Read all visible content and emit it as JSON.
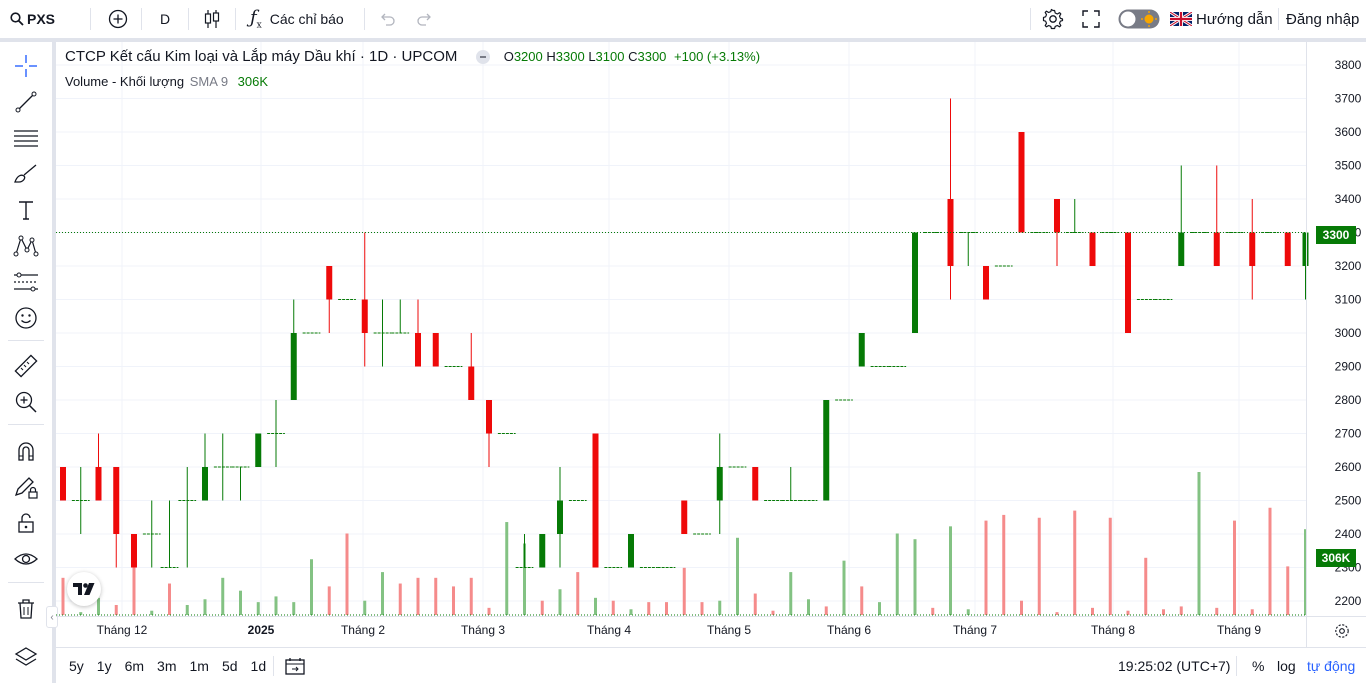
{
  "topbar": {
    "symbol": "PXS",
    "interval": "D",
    "indicators_label": "Các chỉ báo",
    "guide_label": "Hướng dẫn",
    "login_label": "Đăng nhập"
  },
  "legend": {
    "title": "CTCP Kết cấu Kim loại và Lắp máy Dầu khí · 1D · UPCOM",
    "o_label": "O",
    "o_value": "3200",
    "h_label": "H",
    "h_value": "3300",
    "l_label": "L",
    "l_value": "3100",
    "c_label": "C",
    "c_value": "3300",
    "change": "+100 (+3.13%)",
    "volume_label": "Volume - Khối lượng",
    "sma_label": "SMA 9",
    "volume_value": "306K"
  },
  "price_axis": {
    "ticks": [
      "3800",
      "3700",
      "3600",
      "3500",
      "3400",
      "3300",
      "3200",
      "3100",
      "3000",
      "2900",
      "2800",
      "2700",
      "2600",
      "2500",
      "2400",
      "2300",
      "2200"
    ],
    "last_price_tag": "3300",
    "volume_tag": "306K"
  },
  "time_axis": {
    "labels": [
      "Tháng 12",
      "2025",
      "Tháng 2",
      "Tháng 3",
      "Tháng 4",
      "Tháng 5",
      "Tháng 6",
      "Tháng 7",
      "Tháng 8",
      "Tháng 9"
    ]
  },
  "bottombar": {
    "ranges": [
      "5y",
      "1y",
      "6m",
      "3m",
      "1m",
      "5d",
      "1d"
    ],
    "clock": "19:25:02 (UTC+7)",
    "percent_label": "%",
    "log_label": "log",
    "auto_label": "tự động"
  },
  "colors": {
    "up": "#067a06",
    "down": "#ee0a0a",
    "vol_up": "#83c283",
    "vol_down": "#f58b8b",
    "accent": "#2962ff"
  },
  "chart_data": {
    "type": "candlestick",
    "title": "CTCP Kết cấu Kim loại và Lắp máy Dầu khí · 1D · UPCOM",
    "ylim": [
      2150,
      3850
    ],
    "ohlc": [
      [
        2600,
        2600,
        2500,
        2500
      ],
      [
        2500,
        2600,
        2400,
        2500
      ],
      [
        2600,
        2700,
        2500,
        2500
      ],
      [
        2600,
        2600,
        2300,
        2400
      ],
      [
        2400,
        2400,
        2300,
        2300
      ],
      [
        2400,
        2500,
        2300,
        2400
      ],
      [
        2300,
        2500,
        2300,
        2300
      ],
      [
        2500,
        2600,
        2300,
        2500
      ],
      [
        2500,
        2700,
        2500,
        2600
      ],
      [
        2600,
        2700,
        2500,
        2600
      ],
      [
        2600,
        2600,
        2500,
        2600
      ],
      [
        2600,
        2700,
        2600,
        2700
      ],
      [
        2700,
        2800,
        2600,
        2700
      ],
      [
        2800,
        3100,
        2800,
        3000
      ],
      [
        3000,
        3000,
        3000,
        3000
      ],
      [
        3200,
        3200,
        3000,
        3100
      ],
      [
        3100,
        3100,
        3100,
        3100
      ],
      [
        3100,
        3300,
        2900,
        3000
      ],
      [
        3000,
        3100,
        2900,
        3000
      ],
      [
        3000,
        3100,
        3000,
        3000
      ],
      [
        3000,
        3100,
        2900,
        2900
      ],
      [
        3000,
        3000,
        2900,
        2900
      ],
      [
        2900,
        2900,
        2900,
        2900
      ],
      [
        2900,
        3000,
        2800,
        2800
      ],
      [
        2800,
        2800,
        2600,
        2700
      ],
      [
        2700,
        2700,
        2700,
        2700
      ],
      [
        2300,
        2400,
        2300,
        2300
      ],
      [
        2300,
        2400,
        2300,
        2400
      ],
      [
        2400,
        2600,
        2300,
        2500
      ],
      [
        2500,
        2500,
        2500,
        2500
      ],
      [
        2700,
        2700,
        2300,
        2300
      ],
      [
        2300,
        2300,
        2300,
        2300
      ],
      [
        2300,
        2400,
        2300,
        2400
      ],
      [
        2300,
        2300,
        2300,
        2300
      ],
      [
        2300,
        2300,
        2300,
        2300
      ],
      [
        2500,
        2500,
        2400,
        2400
      ],
      [
        2400,
        2400,
        2400,
        2400
      ],
      [
        2500,
        2700,
        2400,
        2600
      ],
      [
        2600,
        2600,
        2600,
        2600
      ],
      [
        2600,
        2600,
        2500,
        2500
      ],
      [
        2500,
        2500,
        2500,
        2500
      ],
      [
        2500,
        2600,
        2500,
        2500
      ],
      [
        2500,
        2500,
        2500,
        2500
      ],
      [
        2500,
        2800,
        2500,
        2800
      ],
      [
        2800,
        2800,
        2800,
        2800
      ],
      [
        2900,
        3000,
        2900,
        3000
      ],
      [
        2900,
        2900,
        2900,
        2900
      ],
      [
        2900,
        2900,
        2900,
        2900
      ],
      [
        3000,
        3300,
        3000,
        3300
      ],
      [
        3300,
        3300,
        3300,
        3300
      ],
      [
        3400,
        3700,
        3100,
        3200
      ],
      [
        3300,
        3300,
        3200,
        3300
      ],
      [
        3200,
        3200,
        3100,
        3100
      ],
      [
        3200,
        3200,
        3200,
        3200
      ],
      [
        3600,
        3600,
        3300,
        3300
      ],
      [
        3300,
        3300,
        3300,
        3300
      ],
      [
        3400,
        3400,
        3200,
        3300
      ],
      [
        3300,
        3400,
        3300,
        3300
      ],
      [
        3300,
        3300,
        3200,
        3200
      ],
      [
        3300,
        3300,
        3300,
        3300
      ],
      [
        3300,
        3300,
        3000,
        3000
      ],
      [
        3100,
        3100,
        3100,
        3100
      ],
      [
        3100,
        3100,
        3100,
        3100
      ],
      [
        3200,
        3500,
        3200,
        3300
      ],
      [
        3300,
        3300,
        3300,
        3300
      ],
      [
        3300,
        3500,
        3200,
        3200
      ],
      [
        3300,
        3300,
        3300,
        3300
      ],
      [
        3300,
        3400,
        3100,
        3200
      ],
      [
        3300,
        3300,
        3300,
        3300
      ],
      [
        3300,
        3300,
        3200,
        3200
      ],
      [
        3200,
        3300,
        3100,
        3300
      ]
    ],
    "volume": [
      [
        0.26,
        0
      ],
      [
        0.02,
        1
      ],
      [
        0.12,
        1
      ],
      [
        0.07,
        0
      ],
      [
        0.39,
        0
      ],
      [
        0.03,
        1
      ],
      [
        0.22,
        0
      ],
      [
        0.07,
        1
      ],
      [
        0.11,
        1
      ],
      [
        0.26,
        1
      ],
      [
        0.17,
        1
      ],
      [
        0.09,
        1
      ],
      [
        0.13,
        1
      ],
      [
        0.09,
        1
      ],
      [
        0.39,
        1
      ],
      [
        0.2,
        0
      ],
      [
        0.57,
        0
      ],
      [
        0.1,
        1
      ],
      [
        0.3,
        1
      ],
      [
        0.22,
        0
      ],
      [
        0.26,
        0
      ],
      [
        0.26,
        0
      ],
      [
        0.2,
        0
      ],
      [
        0.26,
        0
      ],
      [
        0.05,
        0
      ],
      [
        0.65,
        1
      ],
      [
        0.5,
        1
      ],
      [
        0.1,
        0
      ],
      [
        0.18,
        1
      ],
      [
        0.3,
        0
      ],
      [
        0.12,
        1
      ],
      [
        0.1,
        0
      ],
      [
        0.04,
        1
      ],
      [
        0.09,
        0
      ],
      [
        0.09,
        0
      ],
      [
        0.33,
        0
      ],
      [
        0.09,
        0
      ],
      [
        0.1,
        1
      ],
      [
        0.54,
        1
      ],
      [
        0.15,
        0
      ],
      [
        0.03,
        0
      ],
      [
        0.3,
        1
      ],
      [
        0.11,
        1
      ],
      [
        0.06,
        0
      ],
      [
        0.38,
        1
      ],
      [
        0.2,
        0
      ],
      [
        0.09,
        1
      ],
      [
        0.57,
        1
      ],
      [
        0.53,
        1
      ],
      [
        0.05,
        0
      ],
      [
        0.62,
        1
      ],
      [
        0.04,
        1
      ],
      [
        0.66,
        0
      ],
      [
        0.7,
        0
      ],
      [
        0.1,
        0
      ],
      [
        0.68,
        0
      ],
      [
        0.02,
        0
      ],
      [
        0.73,
        0
      ],
      [
        0.05,
        0
      ],
      [
        0.68,
        0
      ],
      [
        0.03,
        0
      ],
      [
        0.4,
        0
      ],
      [
        0.04,
        0
      ],
      [
        0.06,
        0
      ],
      [
        1.0,
        1
      ],
      [
        0.05,
        0
      ],
      [
        0.66,
        0
      ],
      [
        0.04,
        0
      ],
      [
        0.75,
        0
      ],
      [
        0.34,
        0
      ],
      [
        0.6,
        1
      ]
    ],
    "last_price": 3300,
    "last_volume": "306K"
  }
}
